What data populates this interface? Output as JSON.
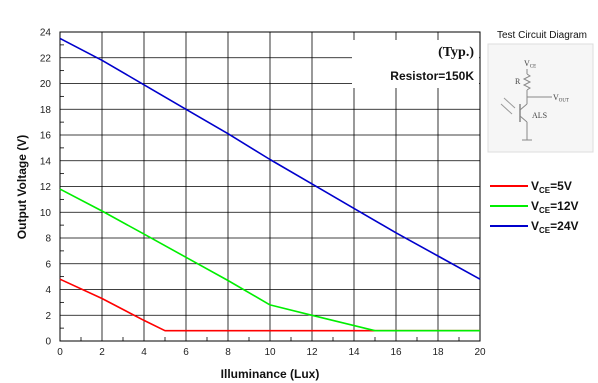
{
  "chart_data": {
    "type": "line",
    "xlabel": "Illuminance (Lux)",
    "ylabel": "Output Voltage (V)",
    "xlim": [
      0,
      20
    ],
    "ylim": [
      0,
      24
    ],
    "x_ticks": [
      0,
      2,
      4,
      6,
      8,
      10,
      12,
      14,
      16,
      18,
      20
    ],
    "y_ticks": [
      0,
      2,
      4,
      6,
      8,
      10,
      12,
      14,
      16,
      18,
      20,
      22,
      24
    ],
    "grid": true,
    "annotations": [
      "(Typ.)",
      "Resistor=150K"
    ],
    "legend_position": "right",
    "series": [
      {
        "name": "V_CE=5V",
        "name_parts": {
          "base": "V",
          "sub": "CE",
          "rest": "=5V"
        },
        "color": "#ff0000",
        "x": [
          0,
          2,
          4,
          5,
          10,
          15,
          20
        ],
        "y": [
          4.8,
          3.3,
          1.6,
          0.8,
          0.8,
          0.8,
          0.8
        ]
      },
      {
        "name": "V_CE=12V",
        "name_parts": {
          "base": "V",
          "sub": "CE",
          "rest": "=12V"
        },
        "color": "#00ee00",
        "x": [
          0,
          2,
          4,
          6,
          8,
          10,
          12,
          15,
          20
        ],
        "y": [
          11.8,
          10.1,
          8.3,
          6.5,
          4.7,
          2.8,
          2.0,
          0.8,
          0.8
        ]
      },
      {
        "name": "V_CE=24V",
        "name_parts": {
          "base": "V",
          "sub": "CE",
          "rest": "=24V"
        },
        "color": "#0000cc",
        "x": [
          0,
          2,
          4,
          6,
          8,
          10,
          12,
          14,
          16,
          18,
          20
        ],
        "y": [
          23.5,
          21.8,
          19.9,
          18.0,
          16.1,
          14.1,
          12.2,
          10.3,
          8.4,
          6.6,
          4.8
        ]
      }
    ]
  },
  "test_circuit": {
    "title": "Test Circuit Diagram",
    "vce": {
      "base": "V",
      "sub": "CE"
    },
    "resistor": "R",
    "vout": {
      "base": "V",
      "sub": "OUT"
    },
    "device": "ALS"
  }
}
